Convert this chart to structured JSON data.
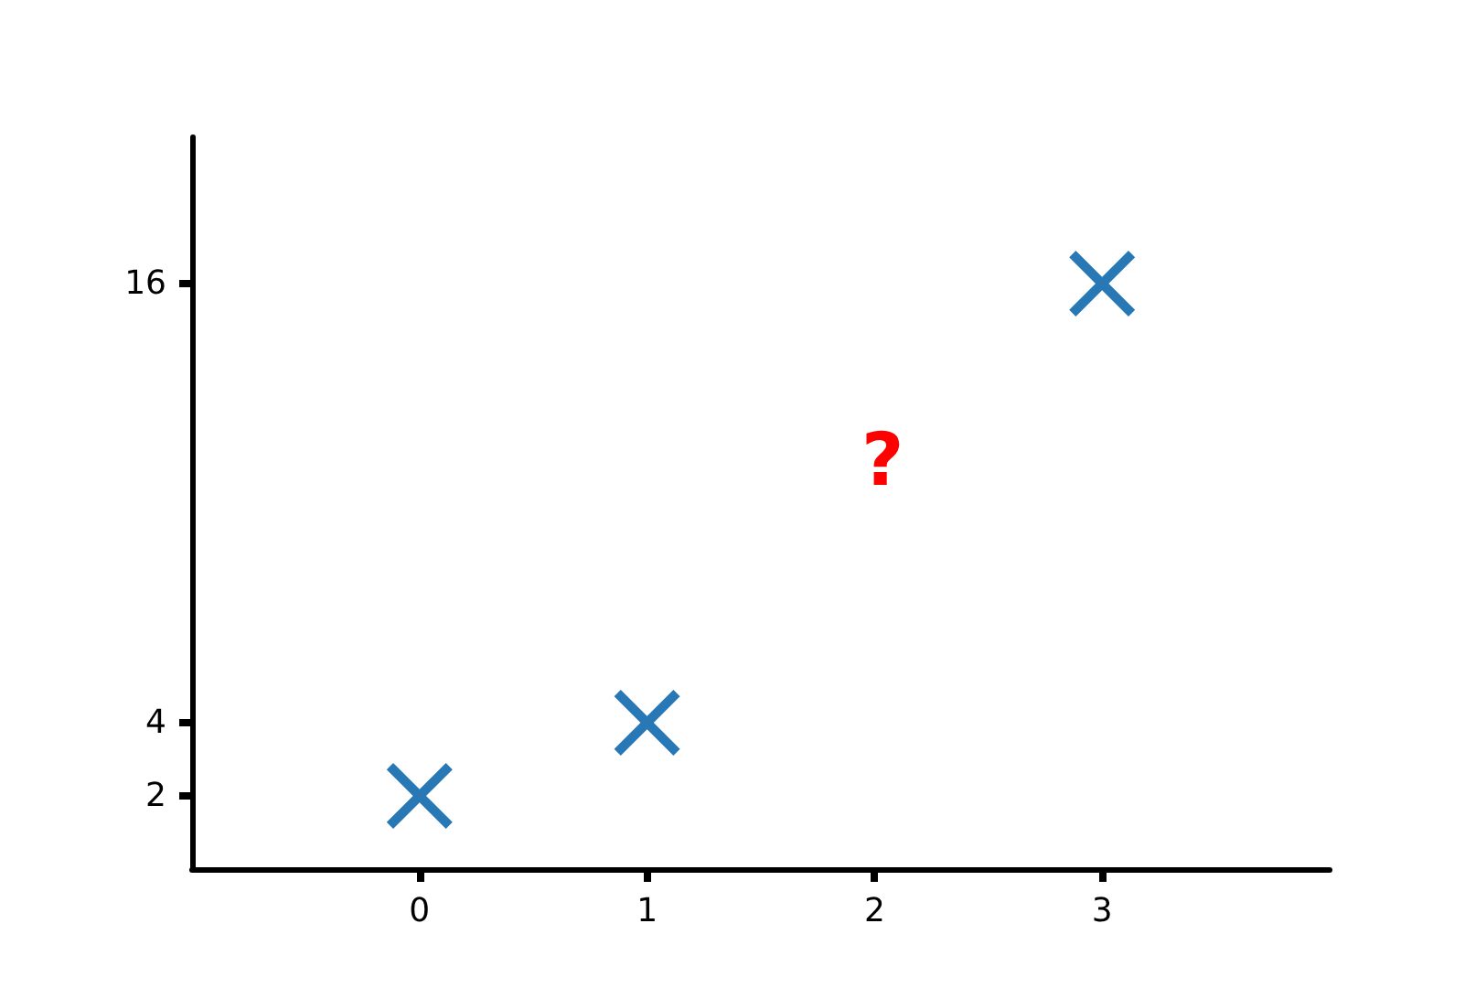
{
  "chart_data": {
    "type": "scatter",
    "x": [
      0,
      1,
      3
    ],
    "values": [
      2,
      4,
      16
    ],
    "color": "#2878b5",
    "marker": "cross",
    "xlim": [
      -1,
      4
    ],
    "xticks": [
      0,
      1,
      2,
      3
    ],
    "ylim": [
      0,
      20
    ],
    "yticks": [
      2,
      4,
      16
    ],
    "grid": false,
    "annotations": [
      "?"
    ]
  }
}
